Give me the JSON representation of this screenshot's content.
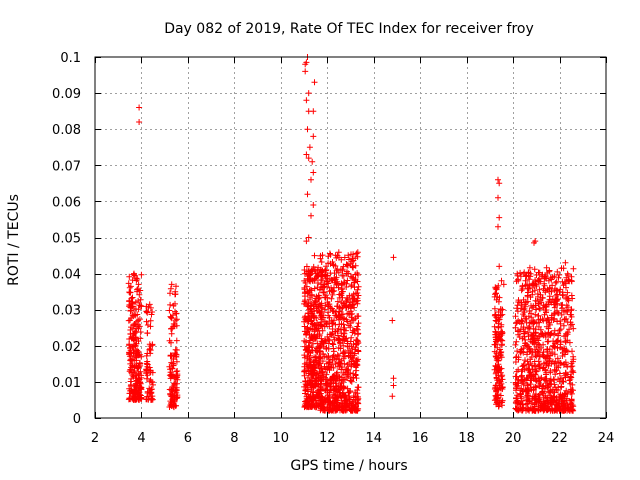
{
  "chart_data": {
    "type": "scatter",
    "title": "Day 082 of 2019, Rate Of TEC Index for receiver froy",
    "xlabel": "GPS time / hours",
    "ylabel": "ROTI / TECUs",
    "xlim": [
      2,
      24
    ],
    "ylim": [
      0,
      0.1
    ],
    "xticks": [
      2,
      4,
      6,
      8,
      10,
      12,
      14,
      16,
      18,
      20,
      22,
      24
    ],
    "yticks": [
      0,
      0.01,
      0.02,
      0.03,
      0.04,
      0.05,
      0.06,
      0.07,
      0.08,
      0.09,
      0.1
    ],
    "xtick_labels": [
      "2",
      "4",
      "6",
      "8",
      "10",
      "12",
      "14",
      "16",
      "18",
      "20",
      "22",
      "24"
    ],
    "ytick_labels": [
      "0",
      "0.01",
      "0.02",
      "0.03",
      "0.04",
      "0.05",
      "0.06",
      "0.07",
      "0.08",
      "0.09",
      "0.1"
    ],
    "grid": true,
    "marker": "+",
    "marker_color": "#ff0000",
    "clusters": [
      {
        "x_start": 3.45,
        "x_end": 4.0,
        "y_low": 0.005,
        "y_high": 0.04,
        "count": 260
      },
      {
        "x_start": 4.2,
        "x_end": 4.5,
        "y_low": 0.005,
        "y_high": 0.032,
        "count": 70
      },
      {
        "x_start": 5.2,
        "x_end": 5.55,
        "y_low": 0.003,
        "y_high": 0.037,
        "count": 120
      },
      {
        "x_start": 11.0,
        "x_end": 11.7,
        "y_low": 0.003,
        "y_high": 0.042,
        "count": 420
      },
      {
        "x_start": 11.7,
        "x_end": 13.35,
        "y_low": 0.002,
        "y_high": 0.046,
        "count": 760
      },
      {
        "x_start": 19.2,
        "x_end": 19.55,
        "y_low": 0.003,
        "y_high": 0.037,
        "count": 160
      },
      {
        "x_start": 20.1,
        "x_end": 22.6,
        "y_low": 0.002,
        "y_high": 0.042,
        "count": 900
      }
    ],
    "outliers": [
      {
        "x": 3.9,
        "y": 0.086
      },
      {
        "x": 3.9,
        "y": 0.082
      },
      {
        "x": 11.05,
        "y": 0.098
      },
      {
        "x": 11.1,
        "y": 0.0985
      },
      {
        "x": 11.15,
        "y": 0.1
      },
      {
        "x": 11.05,
        "y": 0.096
      },
      {
        "x": 11.2,
        "y": 0.09
      },
      {
        "x": 11.1,
        "y": 0.088
      },
      {
        "x": 11.45,
        "y": 0.093
      },
      {
        "x": 11.4,
        "y": 0.085
      },
      {
        "x": 11.2,
        "y": 0.085
      },
      {
        "x": 11.15,
        "y": 0.08
      },
      {
        "x": 11.4,
        "y": 0.078
      },
      {
        "x": 11.25,
        "y": 0.075
      },
      {
        "x": 11.1,
        "y": 0.073
      },
      {
        "x": 11.2,
        "y": 0.072
      },
      {
        "x": 11.35,
        "y": 0.071
      },
      {
        "x": 11.4,
        "y": 0.068
      },
      {
        "x": 11.3,
        "y": 0.066
      },
      {
        "x": 11.15,
        "y": 0.062
      },
      {
        "x": 11.4,
        "y": 0.059
      },
      {
        "x": 11.3,
        "y": 0.056
      },
      {
        "x": 11.2,
        "y": 0.05
      },
      {
        "x": 11.1,
        "y": 0.049
      },
      {
        "x": 11.45,
        "y": 0.045
      },
      {
        "x": 14.85,
        "y": 0.0445
      },
      {
        "x": 14.8,
        "y": 0.027
      },
      {
        "x": 14.85,
        "y": 0.011
      },
      {
        "x": 14.85,
        "y": 0.009
      },
      {
        "x": 14.8,
        "y": 0.006
      },
      {
        "x": 19.35,
        "y": 0.066
      },
      {
        "x": 19.4,
        "y": 0.065
      },
      {
        "x": 19.35,
        "y": 0.061
      },
      {
        "x": 19.4,
        "y": 0.0555
      },
      {
        "x": 19.35,
        "y": 0.053
      },
      {
        "x": 19.4,
        "y": 0.042
      },
      {
        "x": 19.5,
        "y": 0.038
      },
      {
        "x": 19.6,
        "y": 0.037
      },
      {
        "x": 20.95,
        "y": 0.049
      },
      {
        "x": 20.9,
        "y": 0.0485
      },
      {
        "x": 22.25,
        "y": 0.043
      }
    ]
  }
}
